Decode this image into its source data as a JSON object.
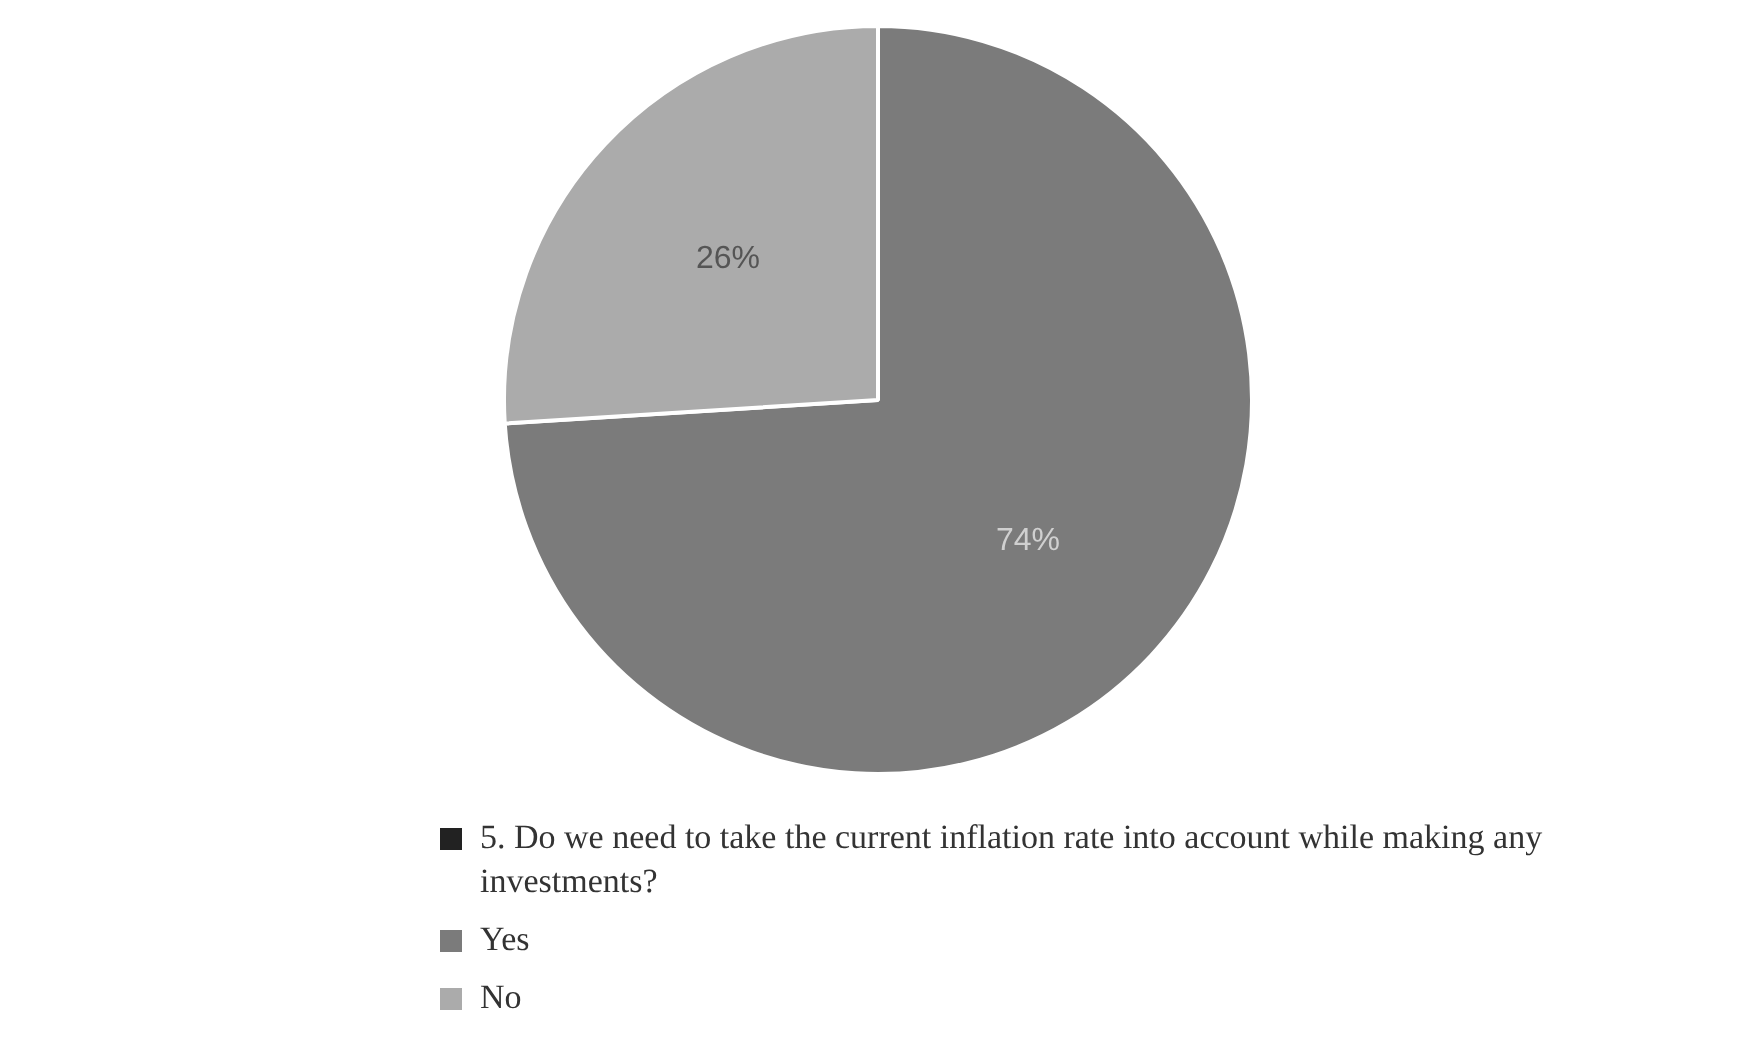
{
  "chart_data": {
    "type": "pie",
    "legend_title": "5. Do we need to take the current inflation rate into account while making any investments?",
    "categories": [
      "Yes",
      "No"
    ],
    "values": [
      74,
      26
    ],
    "colors": [
      "#7b7b7b",
      "#ababab"
    ],
    "value_labels": [
      "74%",
      "26%"
    ],
    "legend": "bottom"
  }
}
